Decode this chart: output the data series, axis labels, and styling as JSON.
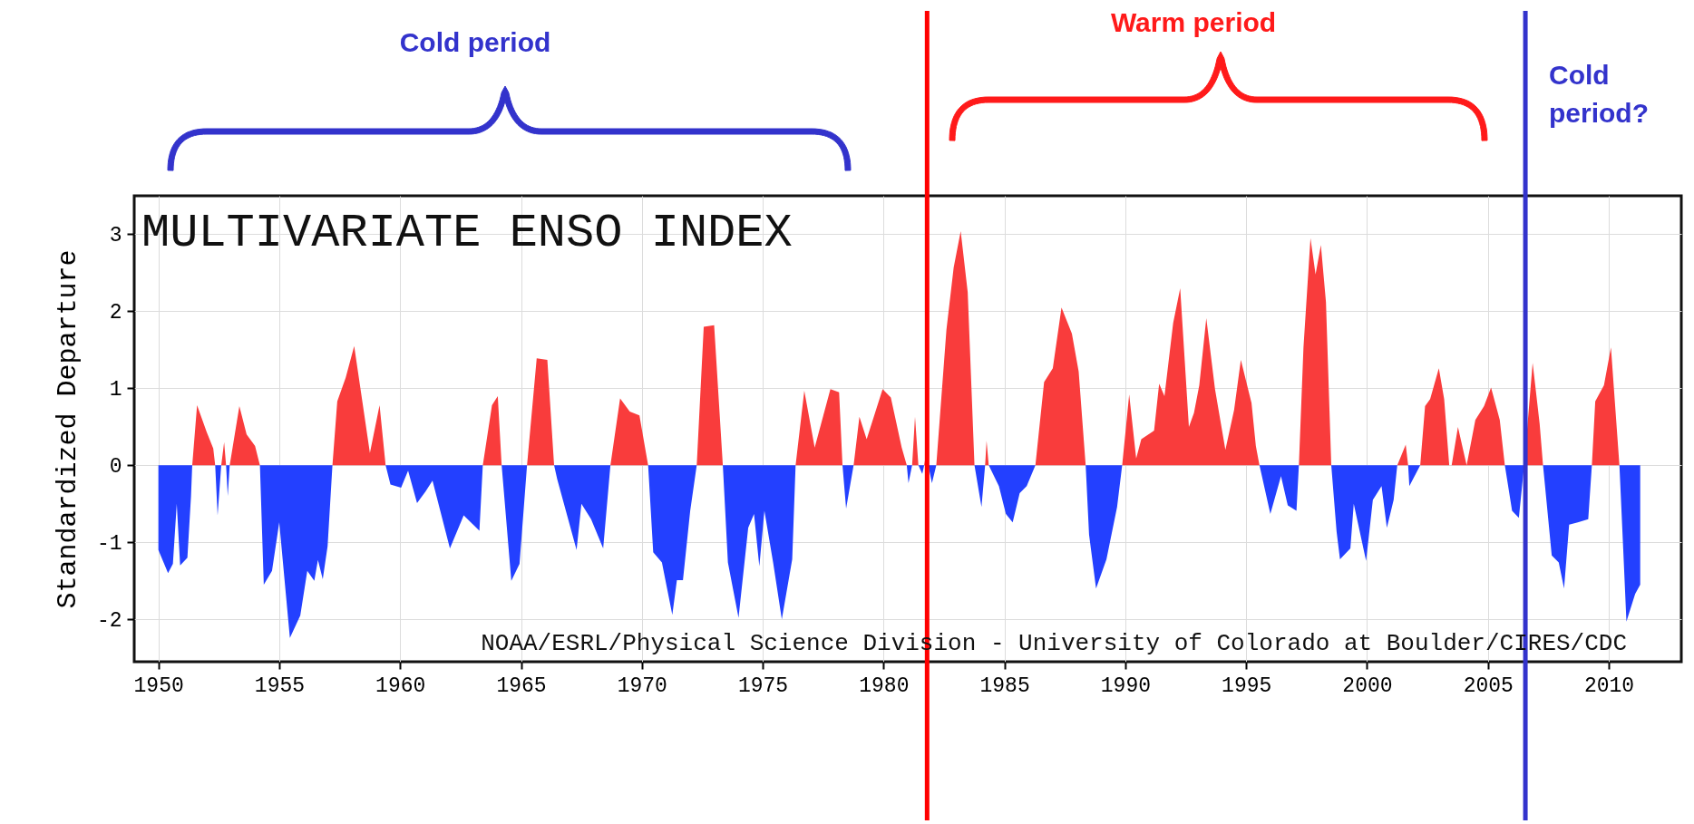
{
  "chart_data": {
    "type": "area",
    "title": "MULTIVARIATE ENSO INDEX",
    "ylabel": "Standardized Departure",
    "annotations": [
      "Cold period",
      "Warm period",
      "Cold period?",
      "NOAA/ESRL/Physical Science Division - University of Colorado at Boulder/CIRES/CDC"
    ],
    "xlim": [
      1949,
      2013
    ],
    "xticks": [
      1950,
      1955,
      1960,
      1965,
      1970,
      1975,
      1980,
      1985,
      1990,
      1995,
      2000,
      2005,
      2010
    ],
    "ylim": [
      -2.55,
      3.5
    ],
    "yticks": [
      -2,
      -1,
      0,
      1,
      2,
      3
    ],
    "grid": true,
    "ref_lines": [
      {
        "axis": "x",
        "value": 1981.8,
        "color": "#ff0000"
      },
      {
        "axis": "x",
        "value": 2006.55,
        "color": "#3333cc"
      }
    ],
    "series": [
      {
        "color": "#f93c3c",
        "x": [
          1950.0,
          1951.4,
          1951.6,
          1952.0,
          1952.27,
          1952.35,
          1952.6,
          1952.72,
          1952.8,
          1952.95,
          1953.35,
          1953.65,
          1954.0,
          1954.2,
          1957.2,
          1957.4,
          1957.75,
          1958.1,
          1958.46,
          1958.75,
          1959.15,
          1959.4,
          1963.42,
          1963.8,
          1964.04,
          1964.2,
          1965.25,
          1965.65,
          1966.09,
          1966.37,
          1968.7,
          1969.1,
          1969.5,
          1969.9,
          1970.26,
          1972.27,
          1972.56,
          1972.99,
          1973.35,
          1976.36,
          1976.72,
          1977.15,
          1977.8,
          1978.16,
          1978.3,
          1978.76,
          1979.0,
          1979.3,
          1979.96,
          1980.3,
          1980.75,
          1980.96,
          1981.18,
          1981.3,
          1981.44,
          1981.68,
          1981.75,
          1981.85,
          1982.18,
          1982.6,
          1982.9,
          1983.19,
          1983.48,
          1983.76,
          1984.2,
          1984.26,
          1984.35,
          1986.28,
          1986.64,
          1987.0,
          1987.36,
          1987.79,
          1988.07,
          1988.36,
          1989.87,
          1990.16,
          1990.45,
          1990.66,
          1991.19,
          1991.4,
          1991.62,
          1991.98,
          1992.27,
          1992.63,
          1992.84,
          1993.06,
          1993.35,
          1993.71,
          1994.14,
          1994.5,
          1994.78,
          1995.22,
          1995.4,
          1995.55,
          1997.18,
          1997.37,
          1997.66,
          1997.87,
          1998.09,
          1998.3,
          1998.52,
          2001.25,
          2001.6,
          2001.7,
          2002.2,
          2002.4,
          2002.61,
          2002.97,
          2003.19,
          2003.4,
          2003.5,
          2003.76,
          2004.12,
          2004.48,
          2004.84,
          2005.13,
          2005.49,
          2005.7,
          2006.5,
          2006.85,
          2007.14,
          2007.28,
          2009.3,
          2009.44,
          2009.8,
          2010.09,
          2010.44,
          2011.3
        ],
        "values": [
          0,
          0,
          0.78,
          0.43,
          0.22,
          0,
          0,
          0.3,
          0,
          0,
          0.77,
          0.4,
          0.25,
          0,
          0,
          0.83,
          1.14,
          1.55,
          0.78,
          0.16,
          0.78,
          0,
          0,
          0.78,
          0.9,
          0,
          0,
          1.39,
          1.37,
          0,
          0,
          0.87,
          0.7,
          0.65,
          0,
          0,
          1.8,
          1.82,
          0,
          0,
          0.97,
          0.23,
          0.99,
          0.95,
          0,
          0,
          0.63,
          0.34,
          0.99,
          0.88,
          0.23,
          0,
          0,
          0.63,
          0,
          0,
          0.14,
          0,
          0,
          1.76,
          2.57,
          3.04,
          2.25,
          0,
          0,
          0.32,
          0,
          0,
          1.08,
          1.26,
          2.05,
          1.71,
          1.22,
          0,
          0,
          0.92,
          0.09,
          0.34,
          0.45,
          1.06,
          0.9,
          1.85,
          2.3,
          0.5,
          0.68,
          1.04,
          1.91,
          0.99,
          0.2,
          0.72,
          1.37,
          0.81,
          0.25,
          0,
          0,
          1.53,
          2.95,
          2.48,
          2.86,
          2.12,
          0,
          0,
          0.27,
          0,
          0,
          0.77,
          0.86,
          1.26,
          0.86,
          0,
          0,
          0.5,
          0,
          0.59,
          0.77,
          1.01,
          0.59,
          0,
          0,
          1.33,
          0.54,
          0,
          0,
          0.83,
          1.04,
          1.53,
          0,
          0
        ]
      },
      {
        "color": "#2340ff",
        "x": [
          1950.0,
          1950.4,
          1950.6,
          1950.76,
          1950.9,
          1951.2,
          1951.35,
          1951.4,
          1952.35,
          1952.45,
          1952.6,
          1952.8,
          1952.87,
          1952.95,
          1954.2,
          1954.36,
          1954.7,
          1955.0,
          1955.44,
          1955.87,
          1956.16,
          1956.45,
          1956.6,
          1956.8,
          1957.0,
          1957.2,
          1959.4,
          1959.6,
          1960.04,
          1960.33,
          1960.7,
          1961.05,
          1961.34,
          1962.06,
          1962.63,
          1963.28,
          1963.42,
          1964.2,
          1964.6,
          1964.94,
          1965.25,
          1966.37,
          1966.5,
          1967.3,
          1967.5,
          1967.9,
          1968.4,
          1968.7,
          1970.26,
          1970.47,
          1970.83,
          1971.26,
          1971.45,
          1971.7,
          1972.0,
          1972.27,
          1973.35,
          1973.56,
          1974.0,
          1974.4,
          1974.64,
          1974.86,
          1975.07,
          1975.43,
          1975.79,
          1976.22,
          1976.36,
          1978.3,
          1978.45,
          1978.76,
          1980.96,
          1981.03,
          1981.18,
          1981.44,
          1981.6,
          1981.68,
          1981.85,
          1982.0,
          1982.18,
          1983.76,
          1984.05,
          1984.2,
          1984.35,
          1984.77,
          1985.06,
          1985.34,
          1985.63,
          1985.92,
          1986.28,
          1988.36,
          1988.5,
          1988.79,
          1989.22,
          1989.66,
          1989.87,
          1995.55,
          1996.0,
          1996.44,
          1996.72,
          1997.08,
          1997.18,
          1998.52,
          1998.74,
          1998.88,
          1999.31,
          1999.45,
          1999.96,
          2000.24,
          2000.6,
          2000.82,
          2001.1,
          2001.25,
          2001.7,
          2001.75,
          2002.2,
          2005.7,
          2006.0,
          2006.28,
          2006.5,
          2007.28,
          2007.64,
          2007.93,
          2008.15,
          2008.36,
          2008.72,
          2009.15,
          2009.3,
          2010.44,
          2010.59,
          2010.73,
          2011.09,
          2011.3
        ],
        "values": [
          -1.1,
          -1.4,
          -1.28,
          -0.5,
          -1.3,
          -1.2,
          -0.4,
          0,
          0,
          -0.65,
          0,
          0,
          -0.4,
          0,
          0,
          -1.55,
          -1.37,
          -0.74,
          -2.24,
          -1.95,
          -1.37,
          -1.5,
          -1.23,
          -1.48,
          -1.05,
          0,
          0,
          -0.25,
          -0.29,
          -0.07,
          -0.49,
          -0.34,
          -0.2,
          -1.08,
          -0.65,
          -0.85,
          0,
          0,
          -1.5,
          -1.28,
          0,
          0,
          -0.18,
          -1.1,
          -0.5,
          -0.7,
          -1.08,
          0,
          0,
          -1.13,
          -1.26,
          -1.94,
          -1.49,
          -1.49,
          -0.59,
          0,
          0,
          -1.26,
          -1.98,
          -0.81,
          -0.63,
          -1.31,
          -0.59,
          -1.26,
          -2.0,
          -1.22,
          0,
          0,
          -0.56,
          0,
          0,
          -0.23,
          0,
          0,
          -0.11,
          0,
          0,
          -0.23,
          0,
          0,
          -0.54,
          0,
          0,
          -0.27,
          -0.63,
          -0.74,
          -0.36,
          -0.27,
          0,
          0,
          -0.9,
          -1.6,
          -1.22,
          -0.54,
          0,
          0,
          -0.63,
          -0.14,
          -0.52,
          -0.59,
          0,
          0,
          -0.86,
          -1.22,
          -1.08,
          -0.5,
          -1.24,
          -0.45,
          -0.27,
          -0.81,
          -0.45,
          0,
          0,
          -0.27,
          0,
          0,
          -0.59,
          -0.68,
          0,
          0,
          -1.17,
          -1.26,
          -1.6,
          -0.77,
          -0.74,
          -0.7,
          0,
          0,
          -1.04,
          -2.03,
          -1.67,
          -1.55
        ]
      }
    ]
  }
}
